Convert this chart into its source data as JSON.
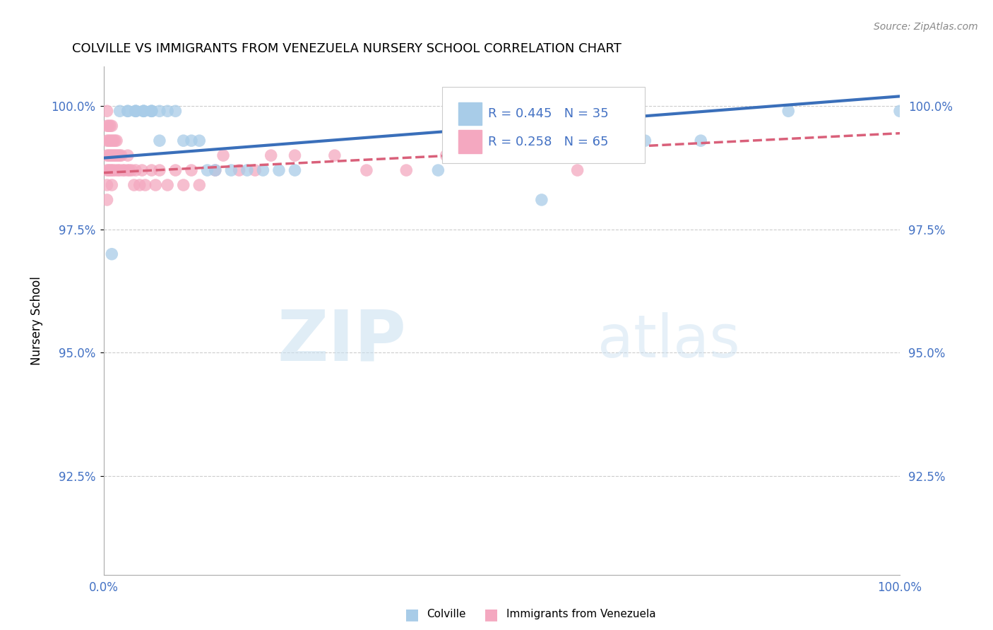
{
  "title": "COLVILLE VS IMMIGRANTS FROM VENEZUELA NURSERY SCHOOL CORRELATION CHART",
  "source": "Source: ZipAtlas.com",
  "ylabel": "Nursery School",
  "x_min": 0.0,
  "x_max": 1.0,
  "y_min": 0.905,
  "y_max": 1.008,
  "y_ticks": [
    0.925,
    0.95,
    0.975,
    1.0
  ],
  "y_tick_labels": [
    "92.5%",
    "95.0%",
    "97.5%",
    "100.0%"
  ],
  "x_tick_labels": [
    "0.0%",
    "100.0%"
  ],
  "legend_r_blue": "R = 0.445",
  "legend_n_blue": "N = 35",
  "legend_r_pink": "R = 0.258",
  "legend_n_pink": "N = 65",
  "blue_color": "#a8cce8",
  "pink_color": "#f4a8c0",
  "blue_line_color": "#3a6fba",
  "pink_line_color": "#d9607a",
  "watermark_zip": "ZIP",
  "watermark_atlas": "atlas",
  "colville_x": [
    0.01,
    0.02,
    0.03,
    0.03,
    0.04,
    0.04,
    0.04,
    0.05,
    0.05,
    0.05,
    0.06,
    0.06,
    0.06,
    0.07,
    0.07,
    0.08,
    0.09,
    0.1,
    0.11,
    0.12,
    0.13,
    0.14,
    0.16,
    0.18,
    0.2,
    0.22,
    0.24,
    0.42,
    0.55,
    0.58,
    0.63,
    0.68,
    0.75,
    0.86,
    1.0
  ],
  "colville_y": [
    0.97,
    0.999,
    0.999,
    0.999,
    0.999,
    0.999,
    0.999,
    0.999,
    0.999,
    0.999,
    0.999,
    0.999,
    0.999,
    0.999,
    0.993,
    0.999,
    0.999,
    0.993,
    0.993,
    0.993,
    0.987,
    0.987,
    0.987,
    0.987,
    0.987,
    0.987,
    0.987,
    0.987,
    0.981,
    0.993,
    0.999,
    0.993,
    0.993,
    0.999,
    0.999
  ],
  "venezuela_x": [
    0.004,
    0.004,
    0.004,
    0.004,
    0.004,
    0.004,
    0.004,
    0.006,
    0.006,
    0.006,
    0.006,
    0.008,
    0.008,
    0.008,
    0.008,
    0.01,
    0.01,
    0.01,
    0.01,
    0.01,
    0.012,
    0.012,
    0.012,
    0.014,
    0.014,
    0.015,
    0.016,
    0.016,
    0.018,
    0.018,
    0.02,
    0.02,
    0.022,
    0.024,
    0.026,
    0.03,
    0.03,
    0.032,
    0.035,
    0.038,
    0.04,
    0.045,
    0.048,
    0.052,
    0.06,
    0.065,
    0.07,
    0.08,
    0.09,
    0.1,
    0.11,
    0.12,
    0.14,
    0.15,
    0.17,
    0.19,
    0.21,
    0.24,
    0.29,
    0.33,
    0.38,
    0.43,
    0.485,
    0.54,
    0.595
  ],
  "venezuela_y": [
    0.999,
    0.996,
    0.993,
    0.99,
    0.987,
    0.984,
    0.981,
    0.996,
    0.993,
    0.99,
    0.987,
    0.996,
    0.993,
    0.99,
    0.987,
    0.996,
    0.993,
    0.99,
    0.987,
    0.984,
    0.993,
    0.99,
    0.987,
    0.993,
    0.99,
    0.987,
    0.993,
    0.99,
    0.99,
    0.987,
    0.99,
    0.987,
    0.99,
    0.987,
    0.987,
    0.99,
    0.987,
    0.987,
    0.987,
    0.984,
    0.987,
    0.984,
    0.987,
    0.984,
    0.987,
    0.984,
    0.987,
    0.984,
    0.987,
    0.984,
    0.987,
    0.984,
    0.987,
    0.99,
    0.987,
    0.987,
    0.99,
    0.99,
    0.99,
    0.987,
    0.987,
    0.99,
    0.99,
    0.993,
    0.987
  ],
  "blue_trendline_x": [
    0.0,
    1.0
  ],
  "blue_trendline_y": [
    0.9895,
    1.002
  ],
  "pink_trendline_x": [
    0.0,
    1.0
  ],
  "pink_trendline_y": [
    0.9865,
    0.9945
  ]
}
